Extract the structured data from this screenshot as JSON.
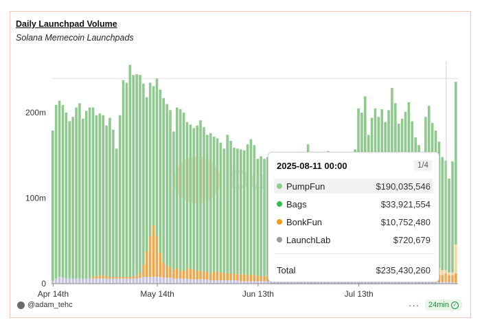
{
  "header": {
    "title": "Daily Launchpad Volume",
    "subtitle": "Solana Memecoin Launchpads"
  },
  "footer": {
    "user": "@adam_tehc",
    "menu": "···",
    "refresh": "24min"
  },
  "colors": {
    "PumpFun": "#8ec98e",
    "Bags": "#f7d6a1",
    "BonkFun": "#f0a64a",
    "LaunchLab": "#c9c3e3",
    "bg_logo": "#f3b48a"
  },
  "tooltip": {
    "date": "2025-08-11 00:00",
    "page": "1/4",
    "rows": [
      {
        "name": "PumpFun",
        "value": "$190,035,546",
        "color": "#8ec98e"
      },
      {
        "name": "Bags",
        "value": "$33,921,554",
        "color": "#2fbf4f"
      },
      {
        "name": "BonkFun",
        "value": "$10,752,480",
        "color": "#f39b1f"
      },
      {
        "name": "LaunchLab",
        "value": "$720,679",
        "color": "#999999"
      }
    ],
    "total_label": "Total",
    "total_value": "$235,430,260"
  },
  "watermark": "Du",
  "chart_data": {
    "type": "bar",
    "stacked": true,
    "x_tick_labels": [
      "Apr 14th",
      "May 14th",
      "Jun 13th",
      "Jul 13th"
    ],
    "y_tick_labels": [
      "0",
      "100m",
      "200m"
    ],
    "ylim": [
      0,
      260
    ],
    "series": [
      {
        "name": "PumpFun",
        "values": [
          176,
          203,
          206,
          202,
          194,
          184,
          189,
          200,
          205,
          187,
          196,
          200,
          198,
          188,
          190,
          187,
          176,
          186,
          172,
          150,
          189,
          230,
          227,
          248,
          235,
          236,
          231,
          212,
          180,
          179,
          163,
          184,
          191,
          192,
          189,
          184,
          162,
          188,
          189,
          185,
          171,
          169,
          165,
          170,
          176,
          169,
          160,
          164,
          158,
          156,
          152,
          145,
          162,
          155,
          147,
          147,
          146,
          145,
          153,
          159,
          151,
          137,
          140,
          137,
          139,
          133,
          130,
          132,
          117,
          124,
          124,
          127,
          118,
          117,
          114,
          122,
          155,
          141,
          127,
          132,
          137,
          137,
          147,
          145,
          141,
          137,
          129,
          143,
          140,
          127,
          149,
          197,
          192,
          211,
          166,
          186,
          197,
          187,
          196,
          174,
          160,
          174,
          168,
          148,
          160,
          170,
          181,
          165,
          152,
          147,
          133,
          172,
          182,
          162,
          157,
          148,
          132,
          128,
          110,
          130,
          190
        ]
      },
      {
        "name": "Bags",
        "values": [
          0,
          0,
          0,
          0,
          0,
          0,
          0,
          0,
          0,
          0,
          0,
          0,
          0,
          0,
          0,
          0,
          0,
          0,
          0,
          0,
          0,
          0,
          0,
          0,
          0,
          0,
          0,
          0,
          0,
          0,
          0,
          0,
          0,
          0,
          0,
          0,
          0,
          0,
          0,
          0,
          0,
          0,
          0,
          0,
          0,
          0,
          0,
          0,
          0,
          0,
          0,
          0,
          0,
          0,
          0,
          0,
          0,
          0,
          0,
          0,
          0,
          0,
          0,
          0,
          0,
          0,
          0,
          0,
          0,
          0,
          0,
          0,
          0,
          0,
          0,
          0,
          0,
          0,
          0,
          0,
          0,
          0,
          0,
          0,
          0,
          0,
          0,
          0,
          0,
          0,
          0,
          0,
          0,
          0,
          0,
          0,
          0,
          0,
          0,
          0,
          0,
          0,
          10,
          12,
          12,
          14,
          18,
          14,
          8,
          6,
          6,
          10,
          12,
          14,
          12,
          8,
          6,
          4,
          3,
          3,
          34
        ]
      },
      {
        "name": "BonkFun",
        "values": [
          0,
          0,
          0,
          0,
          0,
          0,
          0,
          0,
          0,
          0,
          0,
          0,
          2,
          3,
          3,
          4,
          3,
          2,
          2,
          2,
          2,
          2,
          2,
          2,
          3,
          3,
          6,
          14,
          30,
          48,
          60,
          48,
          28,
          18,
          14,
          12,
          10,
          12,
          9,
          9,
          12,
          12,
          12,
          10,
          10,
          9,
          9,
          8,
          10,
          10,
          9,
          9,
          8,
          8,
          8,
          7,
          8,
          8,
          7,
          7,
          8,
          6,
          6,
          6,
          6,
          6,
          6,
          5,
          5,
          5,
          5,
          5,
          6,
          5,
          5,
          5,
          5,
          6,
          5,
          5,
          5,
          5,
          5,
          5,
          5,
          5,
          5,
          5,
          5,
          5,
          5,
          5,
          5,
          5,
          5,
          5,
          5,
          5,
          5,
          12,
          40,
          52,
          30,
          24,
          18,
          14,
          10,
          8,
          8,
          6,
          8,
          10,
          12,
          10,
          8,
          8,
          8,
          10,
          8,
          8,
          11
        ]
      },
      {
        "name": "LaunchLab",
        "values": [
          3,
          6,
          8,
          7,
          6,
          6,
          6,
          6,
          6,
          6,
          6,
          6,
          6,
          6,
          6,
          6,
          6,
          6,
          6,
          6,
          6,
          6,
          6,
          6,
          6,
          6,
          7,
          8,
          8,
          8,
          8,
          8,
          8,
          7,
          7,
          7,
          6,
          6,
          6,
          6,
          6,
          5,
          5,
          5,
          5,
          5,
          5,
          4,
          4,
          4,
          4,
          4,
          4,
          4,
          4,
          4,
          3,
          3,
          3,
          3,
          3,
          3,
          3,
          3,
          3,
          3,
          3,
          3,
          3,
          3,
          3,
          3,
          3,
          3,
          3,
          3,
          3,
          3,
          3,
          3,
          3,
          3,
          3,
          3,
          3,
          3,
          3,
          3,
          3,
          3,
          3,
          3,
          3,
          3,
          3,
          3,
          3,
          3,
          3,
          3,
          3,
          3,
          3,
          3,
          3,
          3,
          3,
          3,
          3,
          3,
          3,
          3,
          2,
          2,
          2,
          2,
          2,
          2,
          2,
          2,
          1
        ]
      }
    ]
  }
}
